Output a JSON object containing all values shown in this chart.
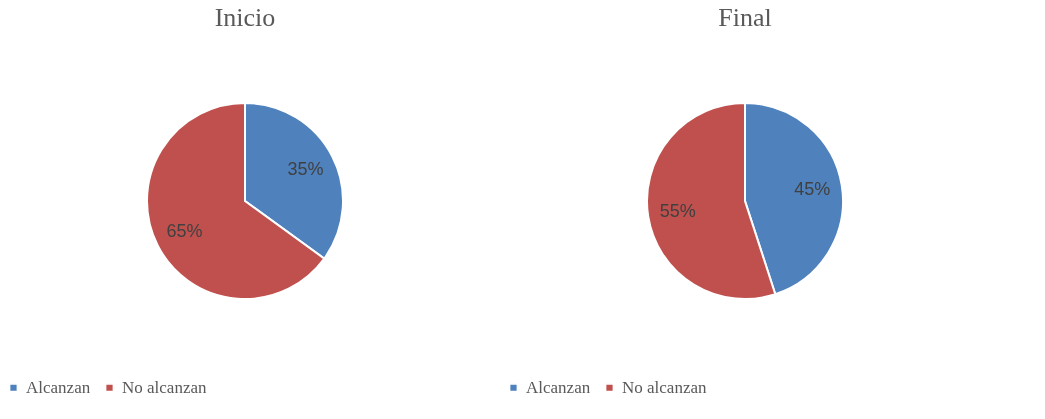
{
  "chart_data": [
    {
      "type": "pie",
      "title": "Inicio",
      "categories": [
        "Alcanzan",
        "No alcanzan"
      ],
      "values": [
        35,
        65
      ],
      "colors": [
        "#4f81bd",
        "#c0504d"
      ],
      "value_labels": [
        "35%",
        "65%"
      ],
      "legend": "bottom"
    },
    {
      "type": "pie",
      "title": "Final",
      "categories": [
        "Alcanzan",
        "No alcanzan"
      ],
      "values": [
        45,
        55
      ],
      "colors": [
        "#4f81bd",
        "#c0504d"
      ],
      "value_labels": [
        "45%",
        "55%"
      ],
      "legend": "bottom"
    }
  ]
}
